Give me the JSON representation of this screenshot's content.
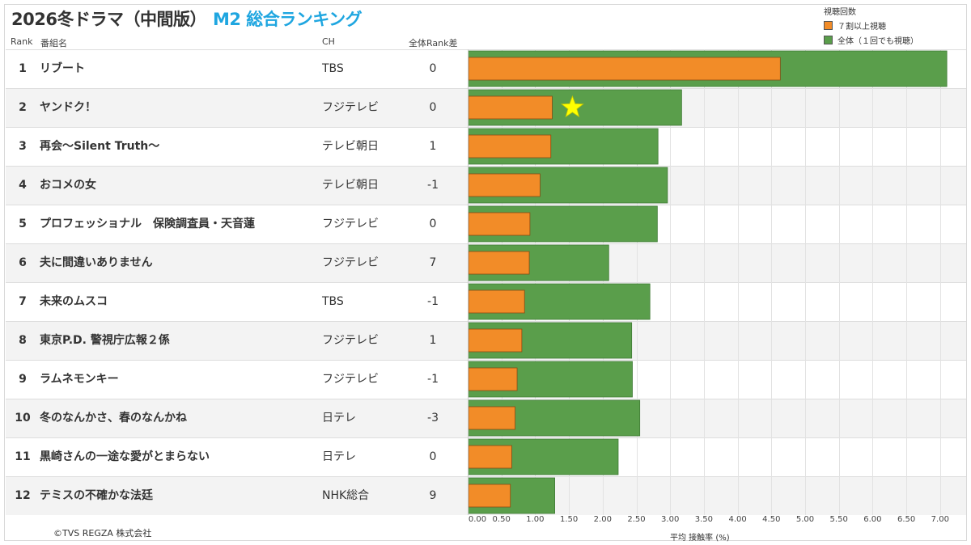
{
  "title": "2026冬ドラマ（中間版）",
  "subtitle": "M2 総合ランキング",
  "headers": {
    "rank": "Rank",
    "program": "番組名",
    "channel": "CH",
    "diff": "全体Rank差"
  },
  "legend": {
    "title": "視聴回数",
    "items": [
      {
        "label": "７割以上視聴",
        "color": "#f28c28"
      },
      {
        "label": "全体（１回でも視聴）",
        "color": "#5a9e4b"
      }
    ]
  },
  "rows": [
    {
      "rank": "1",
      "program": "リブート",
      "channel": "TBS",
      "diff": "0"
    },
    {
      "rank": "2",
      "program": "ヤンドク！",
      "channel": "フジテレビ",
      "diff": "0"
    },
    {
      "rank": "3",
      "program": "再会～Silent Truth～",
      "channel": "テレビ朝日",
      "diff": "1"
    },
    {
      "rank": "4",
      "program": "おコメの女",
      "channel": "テレビ朝日",
      "diff": "-1"
    },
    {
      "rank": "5",
      "program": "プロフェッショナル　保険調査員・天音蓮",
      "channel": "フジテレビ",
      "diff": "0"
    },
    {
      "rank": "6",
      "program": "夫に間違いありません",
      "channel": "フジテレビ",
      "diff": "7"
    },
    {
      "rank": "7",
      "program": "未来のムスコ",
      "channel": "TBS",
      "diff": "-1"
    },
    {
      "rank": "8",
      "program": "東京P.D. 警視庁広報２係",
      "channel": "フジテレビ",
      "diff": "1"
    },
    {
      "rank": "9",
      "program": "ラムネモンキー",
      "channel": "フジテレビ",
      "diff": "-1"
    },
    {
      "rank": "10",
      "program": "冬のなんかさ、春のなんかね",
      "channel": "日テレ",
      "diff": "-3"
    },
    {
      "rank": "11",
      "program": "黒崎さんの一途な愛がとまらない",
      "channel": "日テレ",
      "diff": "0"
    },
    {
      "rank": "12",
      "program": "テミスの不確かな法廷",
      "channel": "NHK総合",
      "diff": "9"
    }
  ],
  "footer": "©TVS REGZA 株式会社",
  "chart_data": {
    "type": "bar",
    "orientation": "horizontal",
    "categories": [
      "リブート",
      "ヤンドク！",
      "再会～Silent Truth～",
      "おコメの女",
      "プロフェッショナル　保険調査員・天音蓮",
      "夫に間違いありません",
      "未来のムスコ",
      "東京P.D. 警視庁広報２係",
      "ラムネモンキー",
      "冬のなんかさ、春のなんかね",
      "黒崎さんの一途な愛がとまらない",
      "テミスの不確かな法廷"
    ],
    "series": [
      {
        "name": "全体（１回でも視聴）",
        "color": "#5a9e4b",
        "values": [
          7.1,
          3.17,
          2.82,
          2.96,
          2.81,
          2.09,
          2.7,
          2.43,
          2.44,
          2.55,
          2.23,
          1.29
        ]
      },
      {
        "name": "７割以上視聴",
        "color": "#f28c28",
        "values": [
          4.62,
          1.24,
          1.22,
          1.06,
          0.91,
          0.9,
          0.83,
          0.79,
          0.72,
          0.69,
          0.64,
          0.62
        ]
      }
    ],
    "xlabel": "平均 接触率 (%)",
    "xlim": [
      0,
      7.3
    ],
    "xticks": [
      "0.00",
      "0.50",
      "1.00",
      "1.50",
      "2.00",
      "2.50",
      "3.00",
      "3.50",
      "4.00",
      "4.50",
      "5.00",
      "5.50",
      "6.00",
      "6.50",
      "7.00"
    ],
    "highlight": {
      "category": "ヤンドク！",
      "marker": "star",
      "color": "#ffff00"
    },
    "grid": true
  }
}
